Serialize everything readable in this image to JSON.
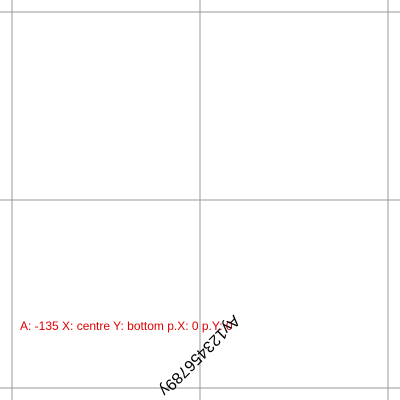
{
  "info_label": "A: -135 X: centre Y: bottom p.X: 0 p.Y: 0",
  "rotated_text": "Ay123456789y"
}
